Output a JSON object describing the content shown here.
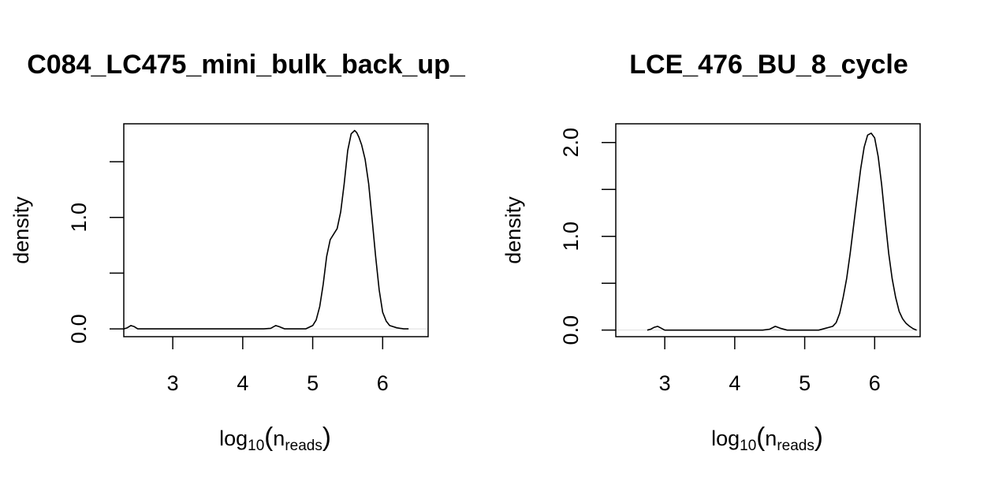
{
  "chart_data": [
    {
      "type": "line",
      "title": "C084_LC475_mini_bulk_back_up_",
      "ylabel": "density",
      "xlabel": {
        "base": "log",
        "base_sub": "10",
        "arg": "n",
        "arg_sub": "reads"
      },
      "xlim": [
        2.3,
        6.65
      ],
      "ylim": [
        -0.07,
        1.84
      ],
      "x_ticks": [
        3,
        4,
        5,
        6
      ],
      "x_tick_labels": [
        "3",
        "4",
        "5",
        "6"
      ],
      "y_ticks": [
        0.0,
        0.5,
        1.0,
        1.5
      ],
      "y_tick_labels": [
        "0.0",
        "",
        "1.0",
        ""
      ],
      "grid": false,
      "series": [
        {
          "x": [
            2.3,
            2.35,
            2.4,
            2.45,
            2.5,
            2.55,
            3.0,
            4.3,
            4.4,
            4.47,
            4.52,
            4.6,
            4.9,
            5.0,
            5.05,
            5.1,
            5.15,
            5.2,
            5.25,
            5.3,
            5.35,
            5.4,
            5.45,
            5.5,
            5.55,
            5.6,
            5.63,
            5.66,
            5.7,
            5.75,
            5.8,
            5.85,
            5.9,
            5.95,
            6.0,
            6.05,
            6.1,
            6.2,
            6.3,
            6.37
          ],
          "y": [
            0.0,
            0.01,
            0.03,
            0.02,
            0.0,
            0.0,
            0.0,
            0.0,
            0.005,
            0.03,
            0.02,
            0.0,
            0.0,
            0.03,
            0.08,
            0.2,
            0.4,
            0.65,
            0.8,
            0.85,
            0.9,
            1.05,
            1.3,
            1.6,
            1.75,
            1.78,
            1.76,
            1.72,
            1.65,
            1.52,
            1.3,
            0.98,
            0.65,
            0.35,
            0.15,
            0.07,
            0.03,
            0.01,
            0.0,
            0.0
          ]
        }
      ]
    },
    {
      "type": "line",
      "title": "LCE_476_BU_8_cycle",
      "ylabel": "density",
      "xlabel": {
        "base": "log",
        "base_sub": "10",
        "arg": "n",
        "arg_sub": "reads"
      },
      "xlim": [
        2.3,
        6.65
      ],
      "ylim": [
        -0.07,
        2.2
      ],
      "x_ticks": [
        3,
        4,
        5,
        6
      ],
      "x_tick_labels": [
        "3",
        "4",
        "5",
        "6"
      ],
      "y_ticks": [
        0.0,
        0.5,
        1.0,
        1.5,
        2.0
      ],
      "y_tick_labels": [
        "0.0",
        "",
        "1.0",
        "",
        "2.0"
      ],
      "grid": false,
      "series": [
        {
          "x": [
            2.75,
            2.8,
            2.85,
            2.9,
            2.95,
            3.0,
            4.4,
            4.5,
            4.58,
            4.65,
            4.75,
            5.2,
            5.3,
            5.35,
            5.4,
            5.45,
            5.5,
            5.55,
            5.6,
            5.65,
            5.7,
            5.75,
            5.8,
            5.85,
            5.9,
            5.95,
            6.0,
            6.05,
            6.1,
            6.15,
            6.2,
            6.25,
            6.3,
            6.35,
            6.4,
            6.45,
            6.5,
            6.55,
            6.6
          ],
          "y": [
            0.0,
            0.01,
            0.03,
            0.04,
            0.02,
            0.0,
            0.0,
            0.01,
            0.04,
            0.02,
            0.0,
            0.0,
            0.02,
            0.03,
            0.04,
            0.08,
            0.18,
            0.35,
            0.55,
            0.82,
            1.12,
            1.42,
            1.72,
            1.95,
            2.08,
            2.1,
            2.05,
            1.85,
            1.55,
            1.18,
            0.82,
            0.55,
            0.35,
            0.2,
            0.12,
            0.07,
            0.04,
            0.015,
            0.0
          ]
        }
      ]
    }
  ]
}
